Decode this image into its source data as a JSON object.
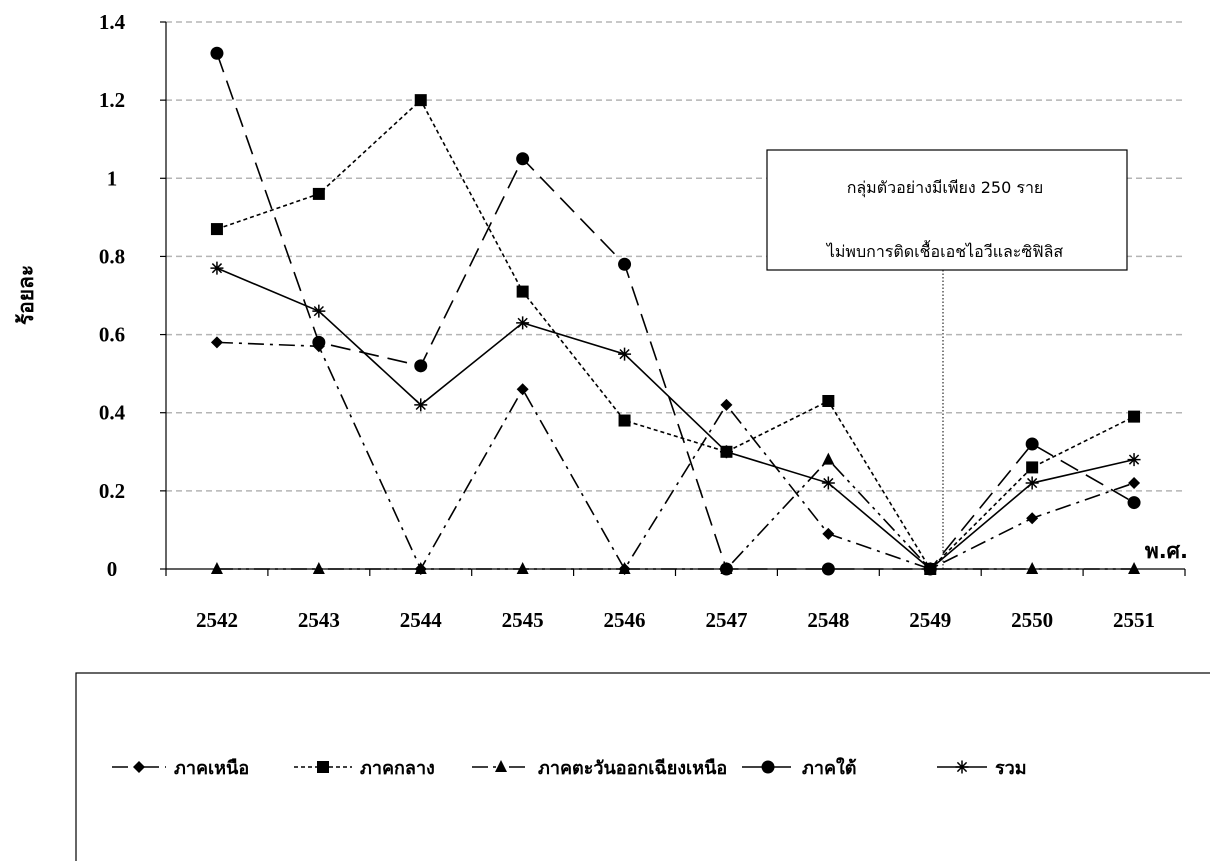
{
  "chart_data": {
    "type": "line",
    "title": "",
    "xlabel": "พ.ศ.",
    "ylabel": "ร้อยละ",
    "ylim": [
      0,
      1.4
    ],
    "y_ticks": [
      "0",
      "0.2",
      "0.4",
      "0.6",
      "0.8",
      "1",
      "1.2",
      "1.4"
    ],
    "categories": [
      "2542",
      "2543",
      "2544",
      "2545",
      "2546",
      "2547",
      "2548",
      "2549",
      "2550",
      "2551"
    ],
    "grid": "horizontal dashed",
    "legend_position": "bottom",
    "series": [
      {
        "name": "ภาคเหนือ",
        "marker": "diamond",
        "dash": "long-dash-dot",
        "values": [
          0.58,
          0.57,
          0,
          0.46,
          0,
          0.42,
          0.09,
          0,
          0.13,
          0.22
        ]
      },
      {
        "name": "ภาคกลาง",
        "marker": "square",
        "dash": "short-dash",
        "values": [
          0.87,
          0.96,
          1.2,
          0.71,
          0.38,
          0.3,
          0.43,
          0,
          0.26,
          0.39
        ]
      },
      {
        "name": "ภาคตะวันออกเฉียงเหนือ",
        "marker": "triangle",
        "dash": "long-dash-dot-dot",
        "values": [
          0,
          0,
          0,
          0,
          0,
          0,
          0.28,
          0,
          0,
          0
        ]
      },
      {
        "name": "ภาคใต้",
        "marker": "circle",
        "dash": "long-dash",
        "values": [
          1.32,
          0.58,
          0.52,
          1.05,
          0.78,
          0,
          0,
          0,
          0.32,
          0.17
        ]
      },
      {
        "name": "รวม",
        "marker": "asterisk",
        "dash": "solid",
        "values": [
          0.77,
          0.66,
          0.42,
          0.63,
          0.55,
          0.3,
          0.22,
          0,
          0.22,
          0.28
        ]
      }
    ],
    "annotation": {
      "line1": "กลุ่มตัวอย่างมีเพียง 250 ราย",
      "line2": "ไม่พบการติดเชื้อเอชไอวีและซิฟิลิส",
      "points_to": "2549"
    }
  }
}
